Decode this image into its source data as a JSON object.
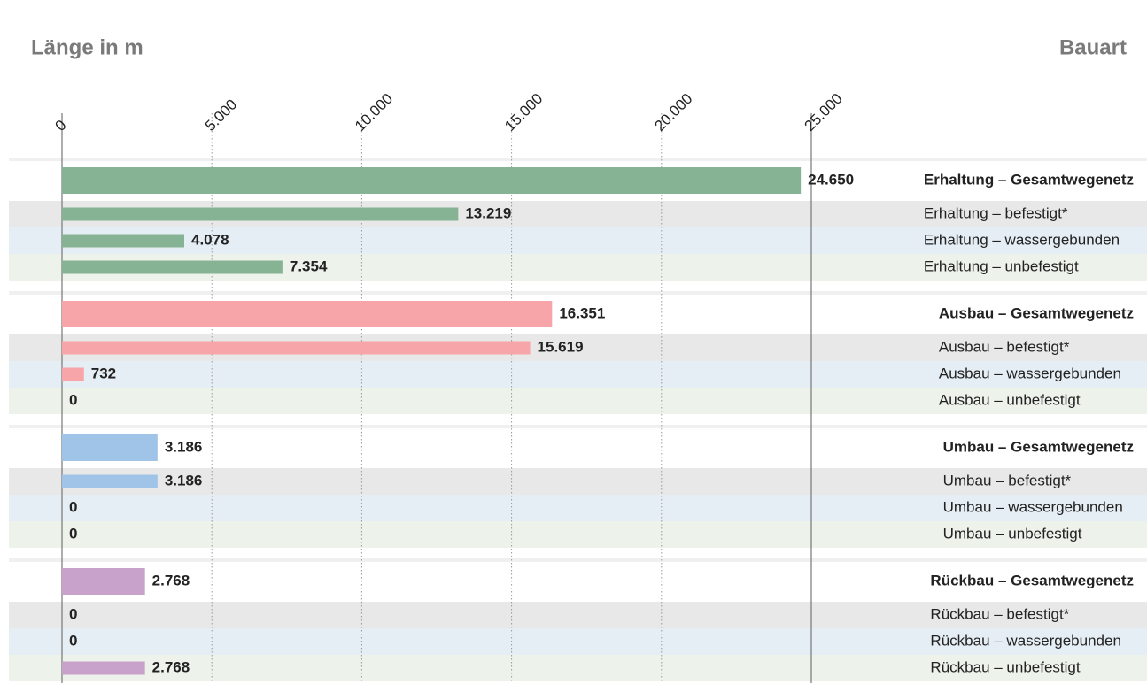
{
  "chart_data": {
    "type": "bar",
    "orientation": "horizontal",
    "title": "Länge in m",
    "y_label": "Bauart",
    "xlim": [
      0,
      25000
    ],
    "xticks": [
      0,
      {
        "value": 5000,
        "label": "5.000"
      },
      {
        "value": 10000,
        "label": "10.000"
      },
      {
        "value": 15000,
        "label": "15.000"
      },
      {
        "value": 20000,
        "label": "20.000"
      },
      {
        "value": 25000,
        "label": "25.000"
      }
    ],
    "grid": true,
    "groups": [
      {
        "color": "#86b394",
        "categories": [
          "Erhaltung – Gesamtwegenetz",
          "Erhaltung – befestigt*",
          "Erhaltung – wassergebunden",
          "Erhaltung – unbefestigt"
        ],
        "values": [
          24650,
          13219,
          4078,
          7354
        ],
        "value_labels": [
          "24.650",
          "13.219",
          "4.078",
          "7.354"
        ]
      },
      {
        "color": "#f7a5a8",
        "categories": [
          "Ausbau – Gesamtwegenetz",
          "Ausbau – befestigt*",
          "Ausbau – wassergebunden",
          "Ausbau – unbefestigt"
        ],
        "values": [
          16351,
          15619,
          732,
          0
        ],
        "value_labels": [
          "16.351",
          "15.619",
          "732",
          "0"
        ]
      },
      {
        "color": "#9fc4e8",
        "categories": [
          "Umbau – Gesamtwegenetz",
          "Umbau – befestigt*",
          "Umbau – wassergebunden",
          "Umbau – unbefestigt"
        ],
        "values": [
          3186,
          3186,
          0,
          0
        ],
        "value_labels": [
          "3.186",
          "3.186",
          "0",
          "0"
        ]
      },
      {
        "color": "#c8a2cb",
        "categories": [
          "Rückbau – Gesamtwegenetz",
          "Rückbau – befestigt*",
          "Rückbau – wassergebunden",
          "Rückbau – unbefestigt"
        ],
        "values": [
          2768,
          0,
          0,
          2768
        ],
        "value_labels": [
          "2.768",
          "0",
          "0",
          "2.768"
        ]
      }
    ]
  }
}
